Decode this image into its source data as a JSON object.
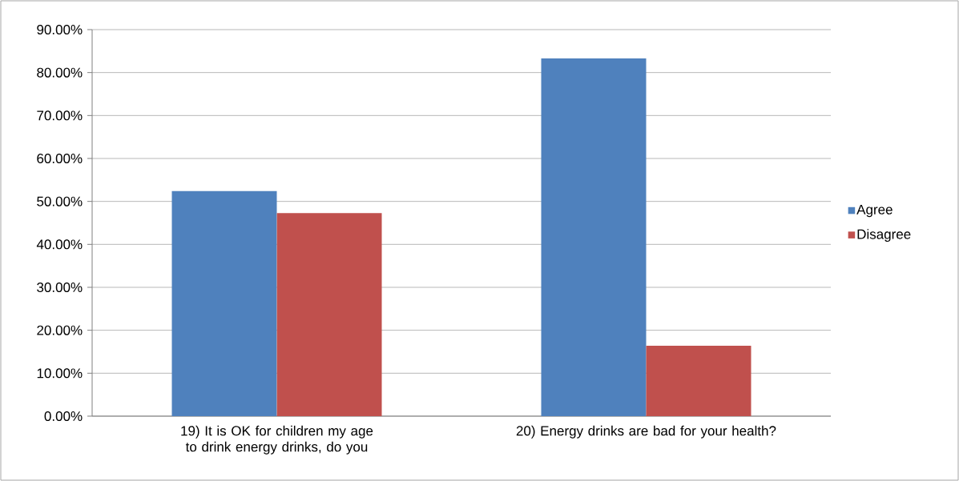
{
  "chart_data": {
    "type": "bar",
    "categories": [
      "19) It is OK for children my age to drink energy drinks, do you",
      "20) Energy drinks are bad for your health?"
    ],
    "series": [
      {
        "name": "Agree",
        "color": "#4f81bd",
        "values": [
          52.4,
          83.3
        ]
      },
      {
        "name": "Disagree",
        "color": "#c0504d",
        "values": [
          47.3,
          16.4
        ]
      }
    ],
    "ylim": [
      0,
      90
    ],
    "yticks": [
      {
        "value": 0,
        "label": "0.00%"
      },
      {
        "value": 10,
        "label": "10.00%"
      },
      {
        "value": 20,
        "label": "20.00%"
      },
      {
        "value": 30,
        "label": "30.00%"
      },
      {
        "value": 40,
        "label": "40.00%"
      },
      {
        "value": 50,
        "label": "50.00%"
      },
      {
        "value": 60,
        "label": "60.00%"
      },
      {
        "value": 70,
        "label": "70.00%"
      },
      {
        "value": 80,
        "label": "80.00%"
      },
      {
        "value": 90,
        "label": "90.00%"
      }
    ],
    "grid": "y",
    "legend": "right"
  }
}
